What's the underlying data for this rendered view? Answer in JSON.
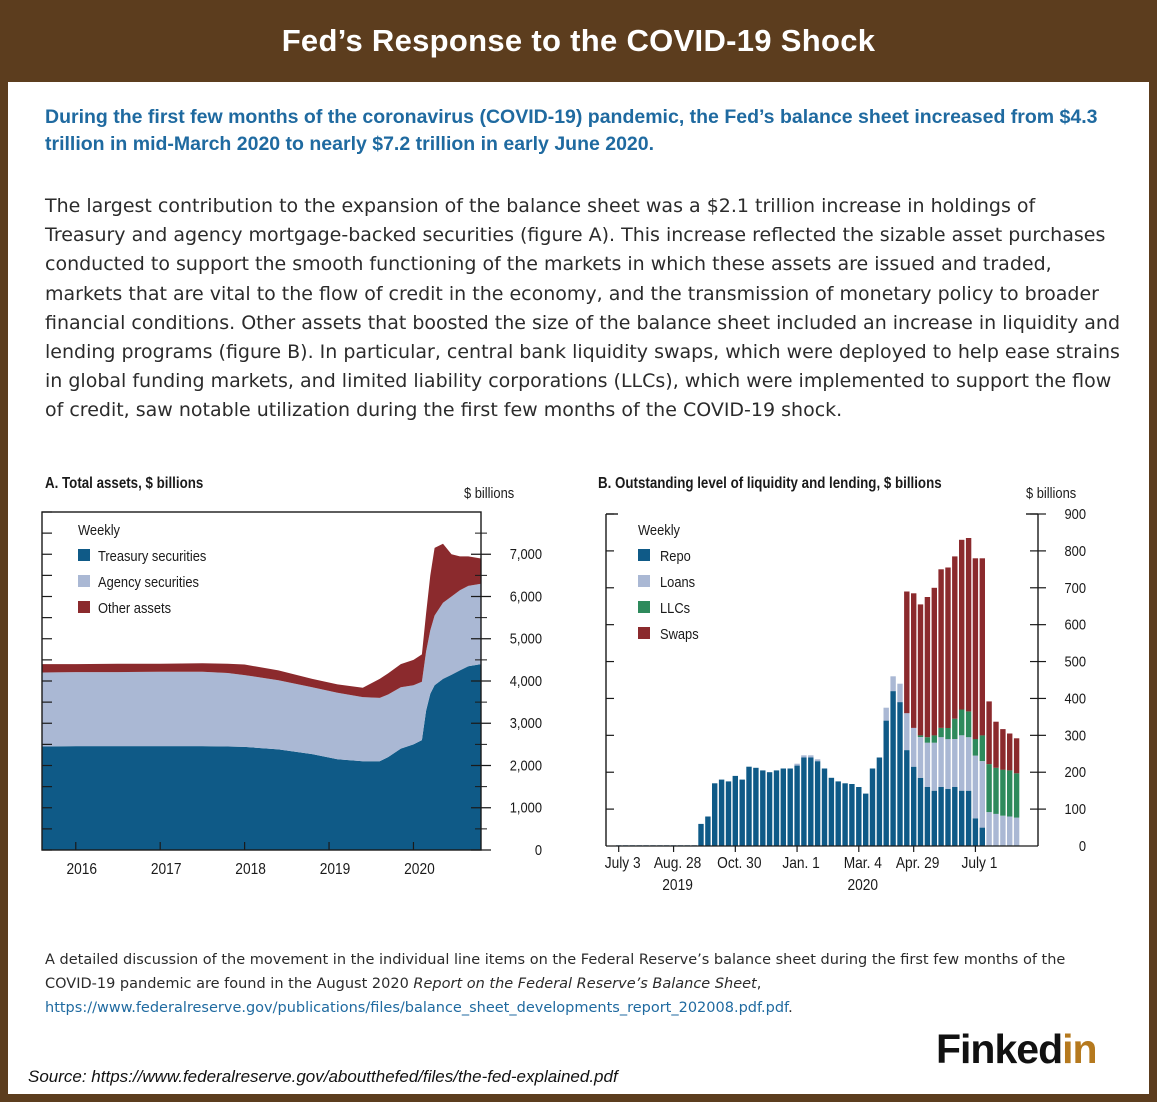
{
  "header": {
    "title": "Fed’s Response to the COVID-19 Shock"
  },
  "lead": "During the first few months of the coronavirus (COVID-19) pandemic, the Fed’s balance sheet increased from $4.3 trillion in mid-March 2020 to nearly $7.2 trillion in early June 2020.",
  "body": "The largest contribution to the expansion of the balance sheet was a $2.1 trillion increase in holdings of Treasury and agency mortgage-backed securities (figure A). This increase reflected the sizable asset purchases conducted to support the smooth functioning of the markets in which these assets are issued and traded, markets that are vital to the flow of credit in the economy, and the transmission of monetary policy to broader financial conditions. Other assets that boosted the size of the balance sheet included an increase in liquidity and lending programs (figure B). In particular, central bank liquidity swaps, which were deployed to help ease strains in global funding markets, and limited liability corporations (LLCs), which were implemented to support the flow of credit, saw notable utilization during the first few months of the COVID-19 shock.",
  "footnote": {
    "text": "A detailed discussion of the movement in the individual line items on the Federal Reserve’s balance sheet during the first few months of the COVID-19 pandemic are found in the August 2020 ",
    "report": "Report on the Federal Reserve’s Balance Sheet",
    "sep": ", ",
    "url": "https://www.federalreserve.gov/publications/files/balance_sheet_developments_report_202008.pdf.pdf",
    "end": "."
  },
  "brand": {
    "main": "Finked",
    "accent": "in"
  },
  "source": "Source: https://www.federalreserve.gov/aboutthefed/files/the-fed-explained.pdf",
  "colors": {
    "treasury": "#0f5a87",
    "agency": "#aab8d4",
    "other": "#8b2a2d",
    "repo": "#0f5a87",
    "loans": "#aab8d4",
    "llcs": "#2e8a5c",
    "swaps": "#8b2a2d",
    "lead": "#1f6aa0",
    "frame": "#5c3d1e"
  },
  "chart_data": [
    {
      "type": "area",
      "title": "A. Total assets, $ billions",
      "unit": "$ billions",
      "legend_title": "Weekly",
      "legend_placement": "top-left",
      "x_ticks": [
        {
          "label": "2016",
          "x": 2016.0
        },
        {
          "label": "2017",
          "x": 2017.0
        },
        {
          "label": "2018",
          "x": 2018.0
        },
        {
          "label": "2019",
          "x": 2019.0
        },
        {
          "label": "2020",
          "x": 2020.0
        }
      ],
      "xlim": [
        2015.6,
        2020.8
      ],
      "ylim": [
        0,
        8000
      ],
      "y_ticks": [
        0,
        1000,
        2000,
        3000,
        4000,
        5000,
        6000,
        7000
      ],
      "y_tick_labels": [
        "0",
        "1,000",
        "2,000",
        "3,000",
        "4,000",
        "5,000",
        "6,000",
        "7,000"
      ],
      "x": [
        2015.6,
        2016.0,
        2016.5,
        2017.0,
        2017.5,
        2017.8,
        2018.0,
        2018.4,
        2018.8,
        2019.1,
        2019.4,
        2019.6,
        2019.7,
        2019.85,
        2020.0,
        2020.1,
        2020.15,
        2020.2,
        2020.25,
        2020.35,
        2020.45,
        2020.55,
        2020.65,
        2020.8
      ],
      "series": [
        {
          "name": "Treasury securities",
          "values": [
            2450,
            2460,
            2460,
            2460,
            2460,
            2450,
            2440,
            2380,
            2270,
            2150,
            2100,
            2100,
            2200,
            2400,
            2500,
            2600,
            3300,
            3700,
            3900,
            4050,
            4150,
            4250,
            4350,
            4400
          ]
        },
        {
          "name": "Agency securities",
          "values": [
            1750,
            1750,
            1750,
            1760,
            1760,
            1740,
            1700,
            1640,
            1580,
            1570,
            1520,
            1500,
            1480,
            1450,
            1400,
            1380,
            1400,
            1500,
            1650,
            1800,
            1850,
            1900,
            1900,
            1900
          ]
        },
        {
          "name": "Other assets",
          "values": [
            200,
            190,
            200,
            190,
            200,
            220,
            250,
            230,
            200,
            200,
            220,
            450,
            500,
            550,
            600,
            650,
            900,
            1300,
            1600,
            1400,
            1000,
            800,
            700,
            600
          ]
        }
      ]
    },
    {
      "type": "bar",
      "stacked": true,
      "title": "B. Outstanding level of liquidity and lending, $ billions",
      "unit": "$ billions",
      "legend_title": "Weekly",
      "legend_placement": "top-left",
      "ylim": [
        0,
        900
      ],
      "y_ticks": [
        0,
        100,
        200,
        300,
        400,
        500,
        600,
        700,
        800,
        900
      ],
      "x_ticks": [
        {
          "label": "July 3",
          "index": 0
        },
        {
          "label": "Aug. 28",
          "sub": "2019",
          "index": 8
        },
        {
          "label": "Oct. 30",
          "index": 17
        },
        {
          "label": "Jan. 1",
          "index": 26
        },
        {
          "label": "Mar. 4",
          "sub": "2020",
          "index": 35
        },
        {
          "label": "Apr. 29",
          "index": 43
        },
        {
          "label": "July 1",
          "index": 52
        }
      ],
      "bar_count": 59,
      "series": [
        {
          "name": "Repo",
          "values": [
            2,
            2,
            2,
            2,
            2,
            2,
            2,
            2,
            2,
            2,
            2,
            2,
            60,
            80,
            170,
            180,
            175,
            190,
            180,
            215,
            212,
            205,
            200,
            205,
            210,
            210,
            218,
            240,
            240,
            230,
            210,
            185,
            175,
            170,
            168,
            160,
            142,
            210,
            240,
            340,
            420,
            390,
            260,
            215,
            185,
            160,
            150,
            160,
            155,
            160,
            150,
            150,
            75,
            50,
            2,
            2,
            2,
            2,
            2
          ]
        },
        {
          "name": "Loans",
          "values": [
            0,
            0,
            0,
            0,
            0,
            0,
            0,
            0,
            0,
            0,
            0,
            0,
            0,
            0,
            0,
            0,
            0,
            0,
            0,
            0,
            0,
            0,
            0,
            0,
            0,
            0,
            5,
            6,
            6,
            5,
            0,
            0,
            0,
            0,
            0,
            0,
            0,
            0,
            0,
            35,
            40,
            50,
            100,
            105,
            110,
            120,
            130,
            135,
            135,
            130,
            150,
            145,
            170,
            180,
            90,
            85,
            80,
            78,
            75
          ]
        },
        {
          "name": "LLCs",
          "values": [
            0,
            0,
            0,
            0,
            0,
            0,
            0,
            0,
            0,
            0,
            0,
            0,
            0,
            0,
            0,
            0,
            0,
            0,
            0,
            0,
            0,
            0,
            0,
            0,
            0,
            0,
            0,
            0,
            0,
            0,
            0,
            0,
            0,
            0,
            0,
            0,
            0,
            0,
            0,
            0,
            0,
            0,
            0,
            0,
            5,
            15,
            20,
            25,
            30,
            55,
            70,
            70,
            45,
            70,
            130,
            125,
            125,
            125,
            120
          ]
        },
        {
          "name": "Swaps",
          "values": [
            0,
            0,
            0,
            0,
            0,
            0,
            0,
            0,
            0,
            0,
            0,
            0,
            0,
            0,
            0,
            0,
            0,
            0,
            0,
            0,
            0,
            0,
            0,
            0,
            0,
            0,
            0,
            0,
            0,
            0,
            0,
            0,
            0,
            0,
            0,
            0,
            0,
            0,
            0,
            0,
            0,
            0,
            330,
            365,
            355,
            380,
            400,
            430,
            435,
            440,
            460,
            470,
            490,
            480,
            170,
            125,
            110,
            100,
            95
          ]
        }
      ]
    }
  ]
}
